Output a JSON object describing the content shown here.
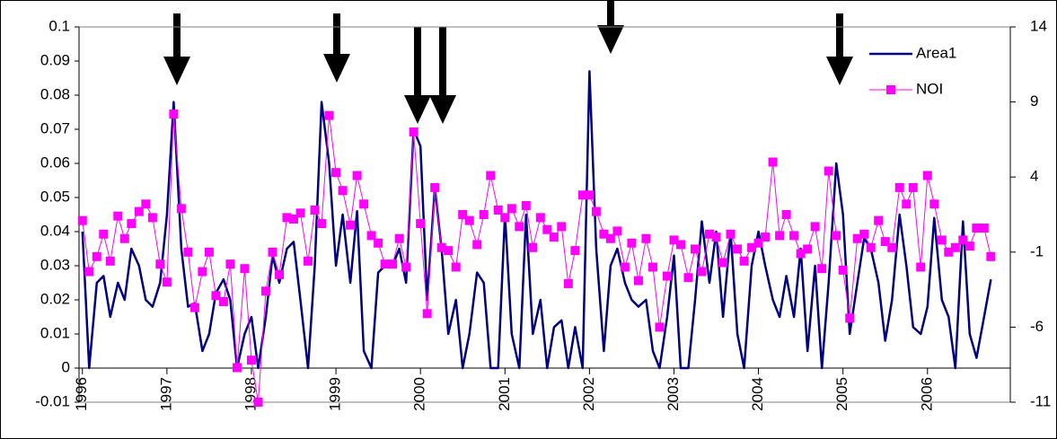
{
  "chart_data": {
    "type": "line",
    "x": [
      1996.0,
      1996.08,
      1996.17,
      1996.25,
      1996.33,
      1996.42,
      1996.5,
      1996.58,
      1996.67,
      1996.75,
      1996.83,
      1996.92,
      1997.0,
      1997.08,
      1997.17,
      1997.25,
      1997.33,
      1997.42,
      1997.5,
      1997.58,
      1997.67,
      1997.75,
      1997.83,
      1997.92,
      1998.0,
      1998.08,
      1998.17,
      1998.25,
      1998.33,
      1998.42,
      1998.5,
      1998.58,
      1998.67,
      1998.75,
      1998.83,
      1998.92,
      1999.0,
      1999.08,
      1999.17,
      1999.25,
      1999.33,
      1999.42,
      1999.5,
      1999.58,
      1999.67,
      1999.75,
      1999.83,
      1999.92,
      2000.0,
      2000.08,
      2000.17,
      2000.25,
      2000.33,
      2000.42,
      2000.5,
      2000.58,
      2000.67,
      2000.75,
      2000.83,
      2000.92,
      2001.0,
      2001.08,
      2001.17,
      2001.25,
      2001.33,
      2001.42,
      2001.5,
      2001.58,
      2001.67,
      2001.75,
      2001.83,
      2001.92,
      2002.0,
      2002.08,
      2002.17,
      2002.25,
      2002.33,
      2002.42,
      2002.5,
      2002.58,
      2002.67,
      2002.75,
      2002.83,
      2002.92,
      2003.0,
      2003.08,
      2003.17,
      2003.25,
      2003.33,
      2003.42,
      2003.5,
      2003.58,
      2003.67,
      2003.75,
      2003.83,
      2003.92,
      2004.0,
      2004.08,
      2004.17,
      2004.25,
      2004.33,
      2004.42,
      2004.5,
      2004.58,
      2004.67,
      2004.75,
      2004.83,
      2004.92,
      2005.0,
      2005.08,
      2005.17,
      2005.25,
      2005.33,
      2005.42,
      2005.5,
      2005.58,
      2005.67,
      2005.75,
      2005.83,
      2005.92,
      2006.0,
      2006.08,
      2006.17,
      2006.25,
      2006.33,
      2006.42,
      2006.5,
      2006.58,
      2006.67,
      2006.75
    ],
    "series": [
      {
        "name": "Area1",
        "color": "#000080",
        "values": [
          0.04,
          0.0,
          0.025,
          0.027,
          0.015,
          0.025,
          0.02,
          0.035,
          0.03,
          0.02,
          0.018,
          0.025,
          0.045,
          0.078,
          0.035,
          0.018,
          0.019,
          0.005,
          0.01,
          0.022,
          0.026,
          0.02,
          0.0,
          0.01,
          0.015,
          0.0,
          0.015,
          0.033,
          0.025,
          0.035,
          0.037,
          0.02,
          0.0,
          0.03,
          0.078,
          0.06,
          0.03,
          0.045,
          0.025,
          0.046,
          0.005,
          0.0,
          0.028,
          0.03,
          0.03,
          0.035,
          0.025,
          0.07,
          0.065,
          0.02,
          0.053,
          0.035,
          0.01,
          0.02,
          0.0,
          0.01,
          0.028,
          0.025,
          0.0,
          0.0,
          0.045,
          0.01,
          0.0,
          0.045,
          0.01,
          0.02,
          0.0,
          0.012,
          0.014,
          0.0,
          0.012,
          0.0,
          0.087,
          0.035,
          0.005,
          0.03,
          0.035,
          0.025,
          0.02,
          0.018,
          0.02,
          0.005,
          0.0,
          0.015,
          0.033,
          0.0,
          0.0,
          0.02,
          0.043,
          0.025,
          0.04,
          0.015,
          0.04,
          0.01,
          0.0,
          0.03,
          0.04,
          0.03,
          0.02,
          0.015,
          0.027,
          0.015,
          0.035,
          0.005,
          0.03,
          0.0,
          0.025,
          0.06,
          0.045,
          0.01,
          0.025,
          0.038,
          0.035,
          0.025,
          0.008,
          0.02,
          0.045,
          0.03,
          0.012,
          0.01,
          0.018,
          0.044,
          0.02,
          0.015,
          0.0,
          0.043,
          0.01,
          0.003,
          0.015,
          0.026
        ]
      },
      {
        "name": "NOI",
        "color": "#ff00ff",
        "axis": "y2",
        "marker": "square",
        "values": [
          1.1,
          -2.3,
          -1.3,
          0.2,
          -1.6,
          1.4,
          -0.1,
          0.9,
          1.7,
          2.2,
          1.3,
          -1.8,
          -3.0,
          8.2,
          1.9,
          -1.0,
          -4.7,
          -2.3,
          -1.0,
          -3.9,
          -4.3,
          -1.8,
          -8.7,
          -2.1,
          -8.2,
          -11.0,
          -3.6,
          -1.0,
          -2.5,
          1.3,
          1.2,
          1.6,
          -1.6,
          1.8,
          0.9,
          8.1,
          4.3,
          3.1,
          0.8,
          4.1,
          2.2,
          0.1,
          -0.4,
          -1.8,
          -1.8,
          -0.1,
          -2.0,
          7.0,
          0.9,
          -5.1,
          3.3,
          -0.7,
          -0.9,
          -2.0,
          1.5,
          1.1,
          -0.5,
          1.5,
          4.1,
          1.8,
          1.3,
          1.9,
          0.7,
          2.1,
          -0.7,
          1.3,
          0.5,
          0.0,
          0.7,
          -3.1,
          -0.9,
          2.8,
          2.8,
          1.7,
          0.2,
          -0.1,
          0.4,
          -2.0,
          -0.4,
          -2.9,
          -0.1,
          -2.0,
          -6.0,
          -2.6,
          -0.2,
          -0.5,
          -2.7,
          -0.8,
          -2.3,
          0.2,
          0.0,
          -1.7,
          0.2,
          -0.8,
          -1.6,
          -0.7,
          -0.4,
          0.0,
          5.0,
          0.1,
          1.5,
          0.1,
          -1.1,
          -0.8,
          0.7,
          -2.1,
          4.4,
          0.1,
          -2.2,
          -5.4,
          -0.1,
          0.2,
          -0.7,
          1.1,
          -0.3,
          -0.7,
          3.3,
          2.2,
          3.3,
          -2.0,
          4.1,
          2.2,
          -0.2,
          -1.0,
          -0.7,
          -0.2,
          -0.6,
          0.6,
          0.6,
          -1.3
        ]
      }
    ],
    "xlim": [
      1995.96,
      2006.98
    ],
    "xticks": [
      1996,
      1997,
      1998,
      1999,
      2000,
      2001,
      2002,
      2003,
      2004,
      2005,
      2006
    ],
    "ylim": [
      -0.01,
      0.1
    ],
    "yticks": [
      0.1,
      0.09,
      0.08,
      0.07,
      0.06,
      0.05,
      0.04,
      0.03,
      0.02,
      0.01,
      0,
      -0.01
    ],
    "y2lim": [
      -11,
      14
    ],
    "y2ticks": [
      14,
      9,
      4,
      -1,
      -6,
      -11
    ],
    "grid": false,
    "legend": "upper right"
  }
}
